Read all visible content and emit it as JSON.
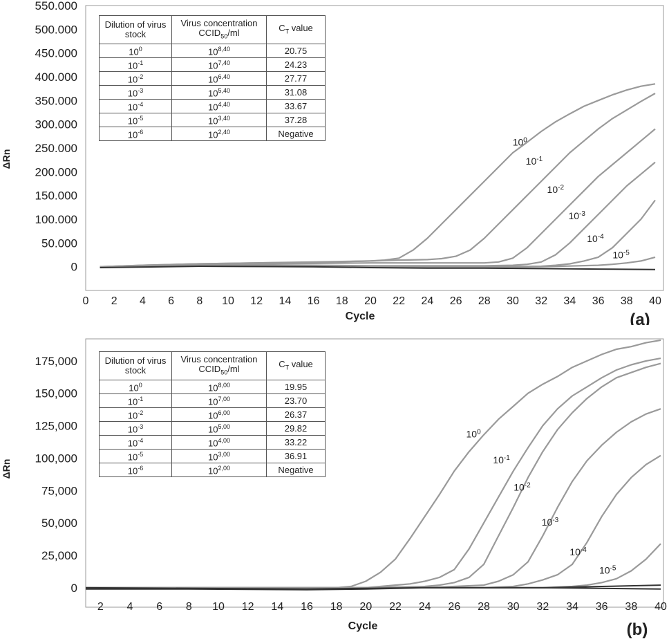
{
  "chart_data": [
    {
      "type": "line",
      "panel_label": "(a)",
      "xlabel": "Cycle",
      "ylabel": "ΔRn",
      "xlim": [
        0,
        40
      ],
      "ylim": [
        -50000,
        550000
      ],
      "x_ticks": [
        0,
        2,
        4,
        6,
        8,
        10,
        12,
        14,
        16,
        18,
        20,
        22,
        24,
        26,
        28,
        30,
        32,
        34,
        36,
        38,
        40
      ],
      "y_ticks": [
        "0",
        "50.000",
        "100.000",
        "150.000",
        "200.000",
        "250.000",
        "300.000",
        "350.000",
        "400.000",
        "450.000",
        "500.000",
        "550.000"
      ],
      "y_tick_values": [
        0,
        50000,
        100000,
        150000,
        200000,
        250000,
        300000,
        350000,
        400000,
        450000,
        500000,
        550000
      ],
      "grid": false,
      "series": [
        {
          "name": "10^0",
          "x": [
            1,
            4,
            8,
            12,
            16,
            18,
            20,
            21,
            22,
            23,
            24,
            25,
            26,
            27,
            28,
            29,
            30,
            31,
            32,
            33,
            34,
            35,
            36,
            37,
            38,
            39,
            40
          ],
          "values": [
            0,
            3000,
            6000,
            8000,
            10000,
            11000,
            12000,
            14000,
            18000,
            35000,
            60000,
            90000,
            120000,
            150000,
            180000,
            210000,
            240000,
            262000,
            285000,
            305000,
            322000,
            338000,
            350000,
            362000,
            372000,
            380000,
            385000
          ]
        },
        {
          "name": "10^-1",
          "x": [
            1,
            4,
            8,
            12,
            16,
            20,
            22,
            24,
            25,
            26,
            27,
            28,
            29,
            30,
            31,
            32,
            33,
            34,
            35,
            36,
            37,
            38,
            39,
            40
          ],
          "values": [
            0,
            3000,
            6000,
            8000,
            9000,
            12000,
            14000,
            15000,
            17000,
            22000,
            35000,
            60000,
            90000,
            120000,
            150000,
            180000,
            210000,
            240000,
            265000,
            290000,
            312000,
            330000,
            348000,
            365000
          ]
        },
        {
          "name": "10^-2",
          "x": [
            1,
            8,
            16,
            20,
            24,
            28,
            29,
            30,
            31,
            32,
            33,
            34,
            35,
            36,
            37,
            38,
            39,
            40
          ],
          "values": [
            0,
            5000,
            7000,
            8000,
            8000,
            8000,
            10000,
            18000,
            40000,
            70000,
            100000,
            130000,
            160000,
            190000,
            215000,
            240000,
            265000,
            290000
          ]
        },
        {
          "name": "10^-3",
          "x": [
            1,
            8,
            16,
            20,
            24,
            28,
            30,
            31,
            32,
            33,
            34,
            35,
            36,
            37,
            38,
            39,
            40
          ],
          "values": [
            0,
            3000,
            3000,
            2000,
            2000,
            2000,
            3000,
            5000,
            10000,
            25000,
            50000,
            80000,
            110000,
            140000,
            170000,
            195000,
            220000
          ]
        },
        {
          "name": "10^-4",
          "x": [
            1,
            8,
            16,
            20,
            24,
            28,
            32,
            33,
            34,
            35,
            36,
            37,
            38,
            39,
            40
          ],
          "values": [
            0,
            2000,
            1000,
            0,
            0,
            0,
            1000,
            3000,
            6000,
            12000,
            20000,
            40000,
            70000,
            100000,
            140000
          ]
        },
        {
          "name": "10^-5",
          "x": [
            1,
            8,
            16,
            20,
            24,
            28,
            32,
            36,
            37,
            38,
            39,
            40
          ],
          "values": [
            0,
            1000,
            0,
            -1000,
            -1000,
            -1000,
            0,
            3000,
            5000,
            8000,
            12000,
            20000
          ]
        },
        {
          "name": "",
          "x": [
            1,
            8,
            16,
            20,
            24,
            28,
            32,
            36,
            40
          ],
          "values": [
            -2000,
            1000,
            0,
            -2000,
            -3000,
            -3000,
            -4000,
            -5000,
            -6000
          ]
        }
      ],
      "table": {
        "headers": [
          "Dilution of virus stock",
          "Virus concentration CCID50/ml",
          "CT value"
        ],
        "rows": [
          {
            "dil_base": "10",
            "dil_exp": "0",
            "conc_base": "10",
            "conc_exp": "8,40",
            "ct": "20.75"
          },
          {
            "dil_base": "10",
            "dil_exp": "-1",
            "conc_base": "10",
            "conc_exp": "7,40",
            "ct": "24.23"
          },
          {
            "dil_base": "10",
            "dil_exp": "-2",
            "conc_base": "10",
            "conc_exp": "6,40",
            "ct": "27.77"
          },
          {
            "dil_base": "10",
            "dil_exp": "-3",
            "conc_base": "10",
            "conc_exp": "5,40",
            "ct": "31.08"
          },
          {
            "dil_base": "10",
            "dil_exp": "-4",
            "conc_base": "10",
            "conc_exp": "4,40",
            "ct": "33.67"
          },
          {
            "dil_base": "10",
            "dil_exp": "-5",
            "conc_base": "10",
            "conc_exp": "3,40",
            "ct": "37.28"
          },
          {
            "dil_base": "10",
            "dil_exp": "-6",
            "conc_base": "10",
            "conc_exp": "2,40",
            "ct": "Negative"
          }
        ]
      },
      "curve_labels": [
        {
          "base": "10",
          "exp": "0",
          "x": 30.5,
          "y": 255000
        },
        {
          "base": "10",
          "exp": "-1",
          "x": 31.5,
          "y": 215000
        },
        {
          "base": "10",
          "exp": "-2",
          "x": 33.0,
          "y": 155000
        },
        {
          "base": "10",
          "exp": "-3",
          "x": 34.5,
          "y": 100000
        },
        {
          "base": "10",
          "exp": "-4",
          "x": 35.8,
          "y": 52000
        },
        {
          "base": "10",
          "exp": "-5",
          "x": 37.6,
          "y": 18000
        }
      ]
    },
    {
      "type": "line",
      "panel_label": "(b)",
      "xlabel": "Cycle",
      "ylabel": "ΔRn",
      "xlim": [
        1,
        40
      ],
      "ylim": [
        -15000,
        192000
      ],
      "x_ticks": [
        2,
        4,
        6,
        8,
        10,
        12,
        14,
        16,
        18,
        20,
        22,
        24,
        26,
        28,
        30,
        32,
        34,
        36,
        38,
        40
      ],
      "y_ticks": [
        "0",
        "25,000",
        "50,000",
        "75,000",
        "100,000",
        "125,000",
        "150,000",
        "175,000"
      ],
      "y_tick_values": [
        0,
        25000,
        50000,
        75000,
        100000,
        125000,
        150000,
        175000
      ],
      "grid": false,
      "series": [
        {
          "name": "10^0",
          "x": [
            1,
            4,
            8,
            12,
            16,
            18,
            19,
            20,
            21,
            22,
            23,
            24,
            25,
            26,
            27,
            28,
            29,
            30,
            31,
            32,
            33,
            34,
            35,
            36,
            37,
            38,
            39,
            40
          ],
          "values": [
            0,
            0,
            0,
            0,
            -1000,
            0,
            1000,
            5000,
            12000,
            22000,
            38000,
            55000,
            72000,
            90000,
            105000,
            118000,
            130000,
            140000,
            150000,
            157000,
            163000,
            170000,
            175000,
            180000,
            184000,
            186000,
            189000,
            191000
          ]
        },
        {
          "name": "10^-1",
          "x": [
            1,
            8,
            16,
            20,
            21,
            22,
            23,
            24,
            25,
            26,
            27,
            28,
            29,
            30,
            31,
            32,
            33,
            34,
            35,
            36,
            37,
            38,
            39,
            40
          ],
          "values": [
            0,
            0,
            0,
            0,
            1000,
            2000,
            3000,
            5000,
            8000,
            14000,
            30000,
            50000,
            70000,
            90000,
            108000,
            125000,
            138000,
            148000,
            155000,
            162000,
            168000,
            172000,
            175000,
            177000
          ]
        },
        {
          "name": "10^-2",
          "x": [
            1,
            8,
            16,
            20,
            24,
            25,
            26,
            27,
            28,
            29,
            30,
            31,
            32,
            33,
            34,
            35,
            36,
            37,
            38,
            39,
            40
          ],
          "values": [
            0,
            0,
            0,
            0,
            1000,
            2000,
            4000,
            8000,
            18000,
            40000,
            62000,
            85000,
            105000,
            122000,
            135000,
            146000,
            155000,
            162000,
            166000,
            170000,
            173000
          ]
        },
        {
          "name": "10^-3",
          "x": [
            1,
            8,
            16,
            20,
            24,
            28,
            29,
            30,
            31,
            32,
            33,
            34,
            35,
            36,
            37,
            38,
            39,
            40
          ],
          "values": [
            0,
            0,
            0,
            0,
            0,
            2000,
            5000,
            10000,
            20000,
            40000,
            62000,
            82000,
            98000,
            110000,
            120000,
            128000,
            134000,
            138000
          ]
        },
        {
          "name": "10^-4",
          "x": [
            1,
            8,
            16,
            20,
            24,
            28,
            30,
            31,
            32,
            33,
            34,
            35,
            36,
            37,
            38,
            39,
            40
          ],
          "values": [
            0,
            0,
            0,
            0,
            0,
            0,
            1000,
            3000,
            6000,
            10000,
            18000,
            35000,
            55000,
            72000,
            85000,
            95000,
            102000
          ]
        },
        {
          "name": "10^-5",
          "x": [
            1,
            8,
            16,
            20,
            24,
            28,
            32,
            34,
            35,
            36,
            37,
            38,
            39,
            40
          ],
          "values": [
            0,
            0,
            0,
            0,
            0,
            0,
            0,
            1000,
            2000,
            4000,
            7000,
            13000,
            22000,
            34000
          ]
        },
        {
          "name": "",
          "x": [
            1,
            8,
            16,
            20,
            24,
            28,
            32,
            36,
            40
          ],
          "values": [
            0,
            -500,
            -1000,
            -500,
            0,
            0,
            0,
            1000,
            2000
          ]
        },
        {
          "name": "",
          "x": [
            1,
            8,
            16,
            20,
            24,
            28,
            32,
            36,
            40
          ],
          "values": [
            -1000,
            -1000,
            -1500,
            -1000,
            0,
            0,
            0,
            -500,
            -1000
          ]
        }
      ],
      "table": {
        "headers": [
          "Dilution of virus stock",
          "Virus concentration CCID50/ml",
          "CT value"
        ],
        "rows": [
          {
            "dil_base": "10",
            "dil_exp": "0",
            "conc_base": "10",
            "conc_exp": "8,00",
            "ct": "19.95"
          },
          {
            "dil_base": "10",
            "dil_exp": "-1",
            "conc_base": "10",
            "conc_exp": "7,00",
            "ct": "23.70"
          },
          {
            "dil_base": "10",
            "dil_exp": "-2",
            "conc_base": "10",
            "conc_exp": "6,00",
            "ct": "26.37"
          },
          {
            "dil_base": "10",
            "dil_exp": "-3",
            "conc_base": "10",
            "conc_exp": "5,00",
            "ct": "29.82"
          },
          {
            "dil_base": "10",
            "dil_exp": "-4",
            "conc_base": "10",
            "conc_exp": "4,00",
            "ct": "33.22"
          },
          {
            "dil_base": "10",
            "dil_exp": "-5",
            "conc_base": "10",
            "conc_exp": "3,00",
            "ct": "36.91"
          },
          {
            "dil_base": "10",
            "dil_exp": "-6",
            "conc_base": "10",
            "conc_exp": "2,00",
            "ct": "Negative"
          }
        ]
      },
      "curve_labels": [
        {
          "base": "10",
          "exp": "0",
          "x": 27.3,
          "y": 116000
        },
        {
          "base": "10",
          "exp": "-1",
          "x": 29.2,
          "y": 96000
        },
        {
          "base": "10",
          "exp": "-2",
          "x": 30.6,
          "y": 75000
        },
        {
          "base": "10",
          "exp": "-3",
          "x": 32.5,
          "y": 48000
        },
        {
          "base": "10",
          "exp": "-4",
          "x": 34.4,
          "y": 25000
        },
        {
          "base": "10",
          "exp": "-5",
          "x": 36.4,
          "y": 11000
        }
      ]
    }
  ],
  "colors": {
    "curve": "#9a9a9a",
    "baseline_dark": "#333333",
    "axis": "#9a9a9a",
    "text": "#222222"
  }
}
